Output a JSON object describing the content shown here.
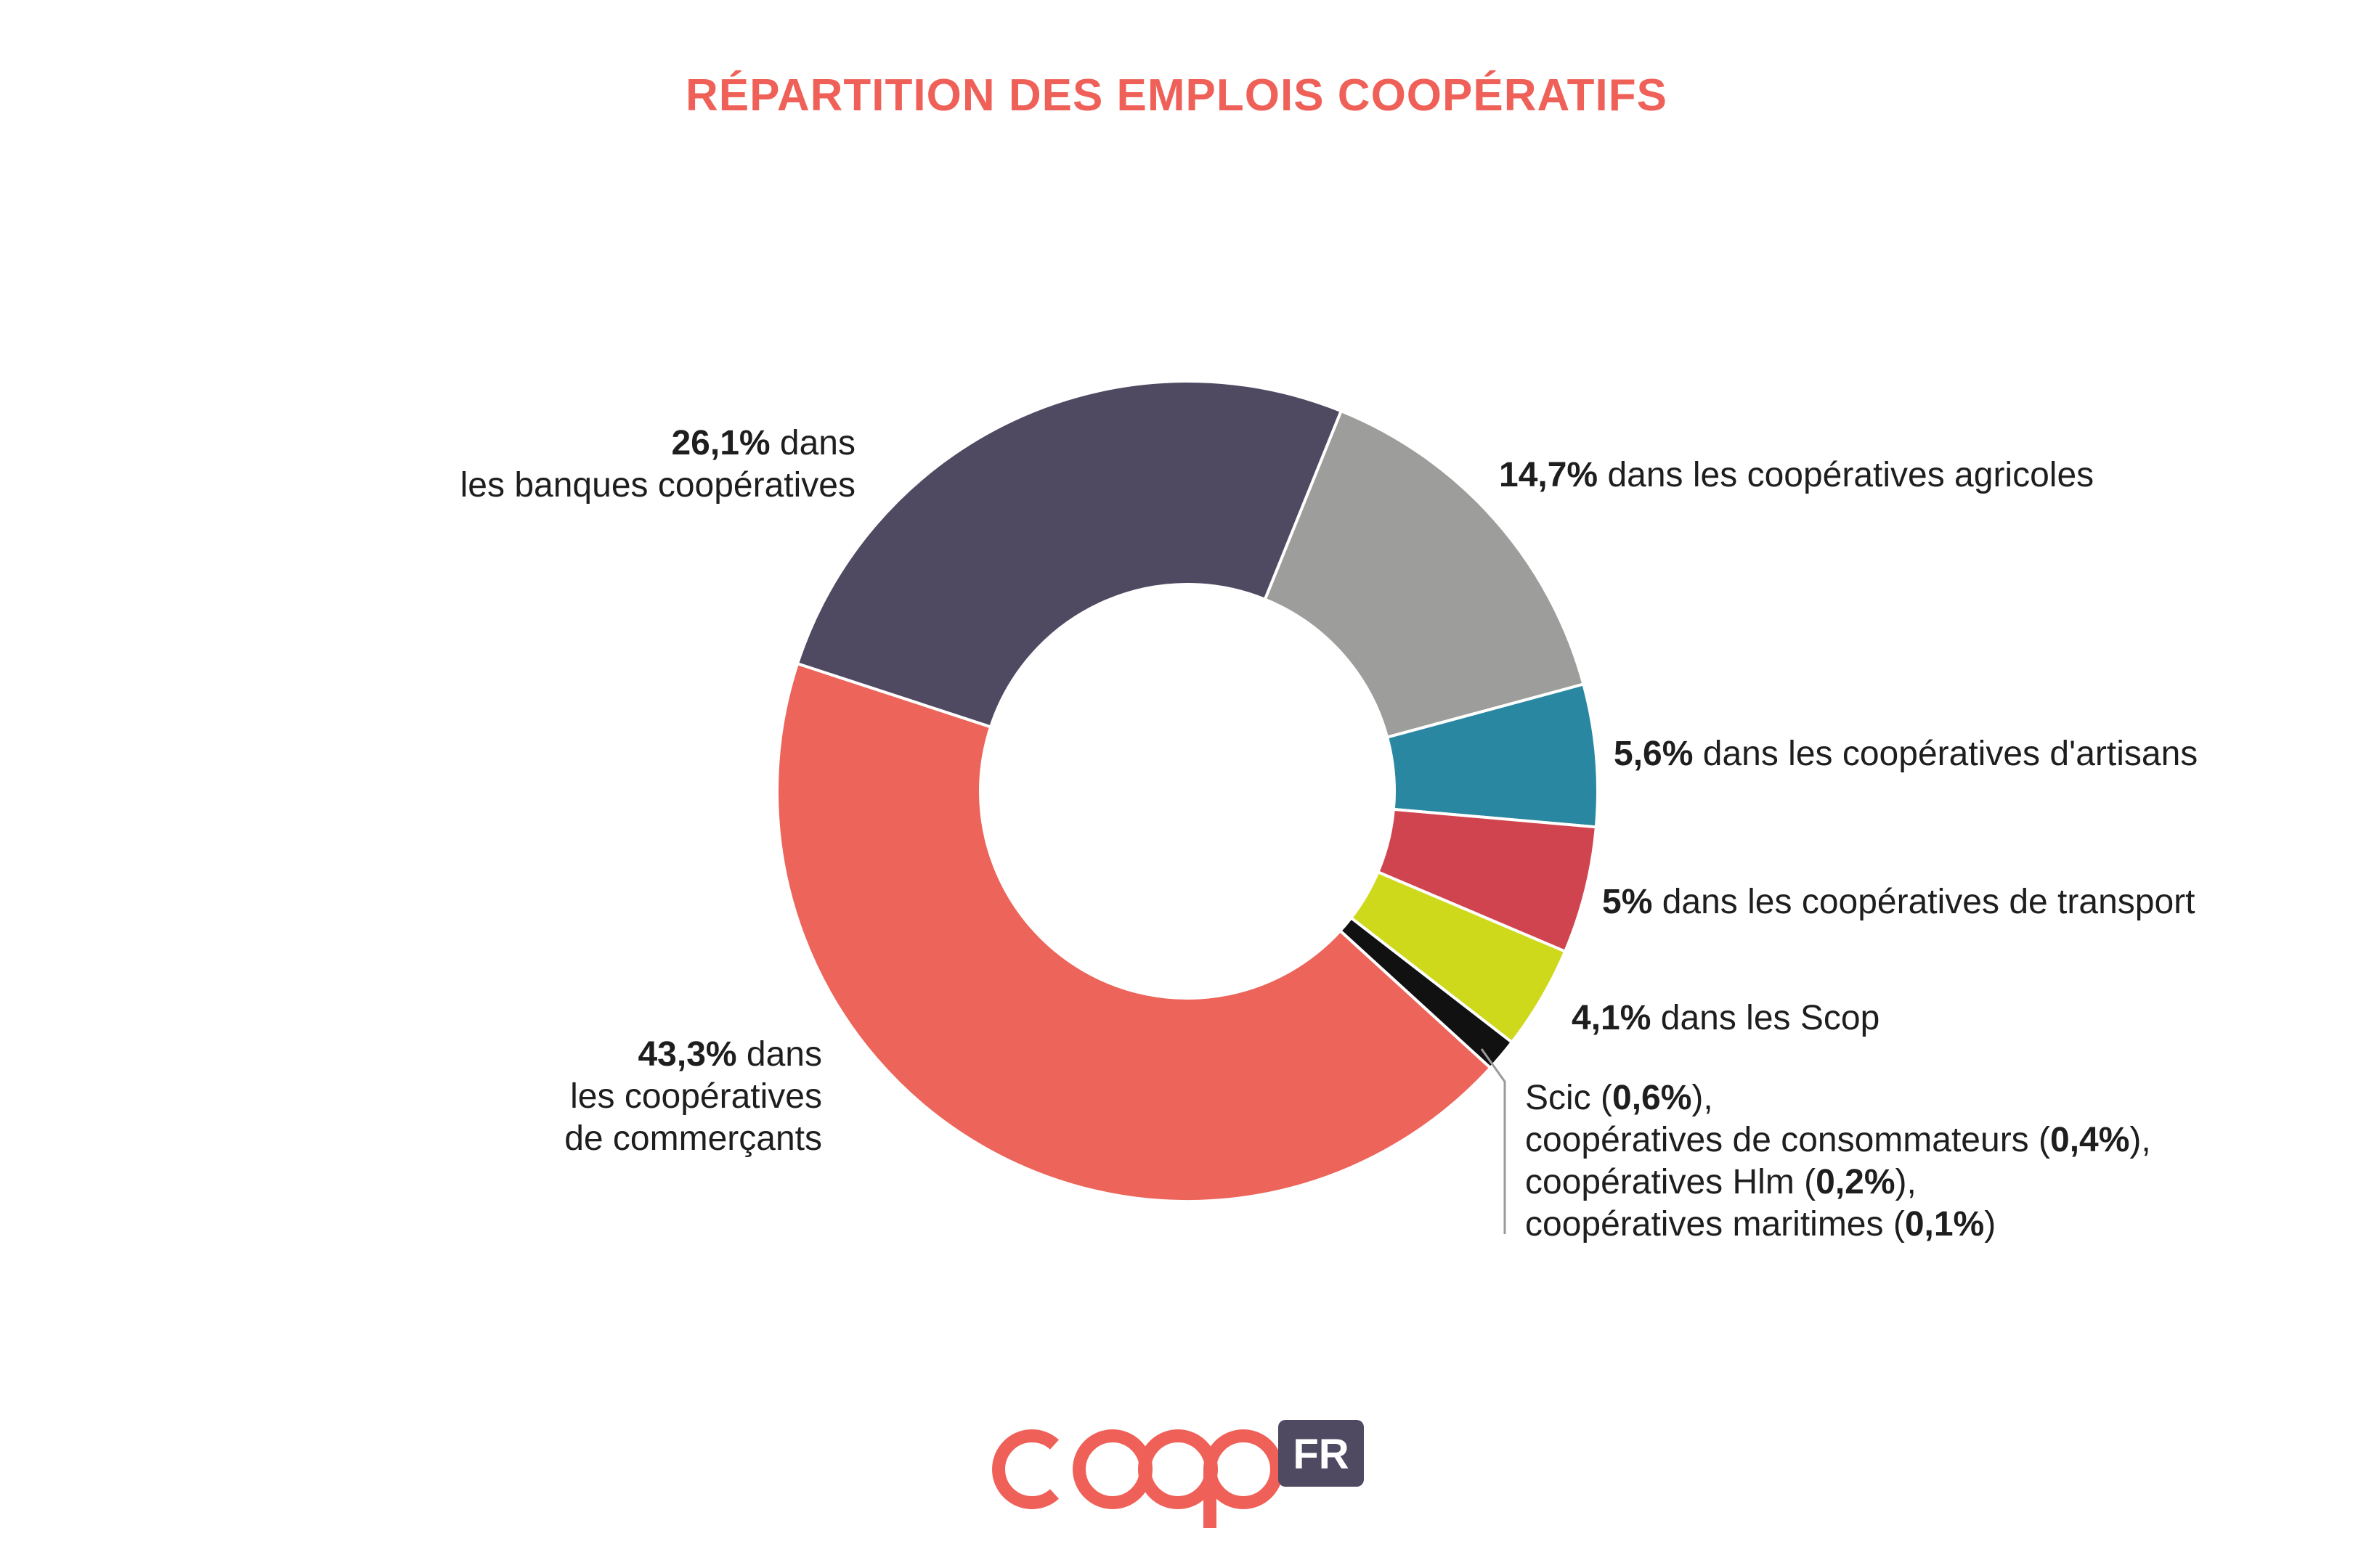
{
  "chart_data": {
    "type": "pie",
    "title": "RÉPARTITION DES EMPLOIS COOPÉRATIFS",
    "title_color": "#ef6158",
    "slices": [
      {
        "label": "dans les coopératives agricoles",
        "value": 14.7,
        "value_text": "14,7%",
        "color": "#9d9d9b"
      },
      {
        "label": "dans les coopératives d'artisans",
        "value": 5.6,
        "value_text": "5,6%",
        "color": "#2a87a1"
      },
      {
        "label": "dans les coopératives de transport",
        "value": 5.0,
        "value_text": "5%",
        "color": "#d04450"
      },
      {
        "label": "dans les Scop",
        "value": 4.1,
        "value_text": "4,1%",
        "color": "#cfd91c"
      },
      {
        "label": "Scic, coopératives de consommateurs, coopératives Hlm, coopératives maritimes",
        "value": 1.3,
        "value_text": "",
        "color": "#111111"
      },
      {
        "label": "dans les coopératives de commerçants",
        "value": 43.3,
        "value_text": "43,3%",
        "color": "#ec645a"
      },
      {
        "label": "dans les banques coopératives",
        "value": 26.1,
        "value_text": "26,1%",
        "color": "#4f4a62"
      }
    ],
    "labels": {
      "agricoles": {
        "value": "14,7%",
        "text": " dans les coopératives agricoles"
      },
      "artisans": {
        "value": "5,6%",
        "text": " dans les coopératives d'artisans"
      },
      "transport": {
        "value": "5%",
        "text": " dans les coopératives de transport"
      },
      "scop": {
        "value": "4,1%",
        "text": " dans les Scop"
      },
      "banques": {
        "value": "26,1%",
        "line1": " dans",
        "line2": "les banques coopératives"
      },
      "commercants": {
        "value": "43,3%",
        "line1": " dans",
        "line2": "les coopératives",
        "line3": "de commerçants"
      },
      "others": [
        {
          "before": "Scic (",
          "value": "0,6%",
          "after": "),"
        },
        {
          "before": "coopératives de consommateurs (",
          "value": "0,4%",
          "after": "),"
        },
        {
          "before": "coopératives Hlm (",
          "value": "0,2%",
          "after": "),"
        },
        {
          "before": "coopératives maritimes (",
          "value": "0,1%",
          "after": ")"
        }
      ]
    }
  },
  "logo": {
    "text": "coop",
    "badge": "FR",
    "coop_color": "#ef6158",
    "badge_color": "#4f4a62"
  }
}
